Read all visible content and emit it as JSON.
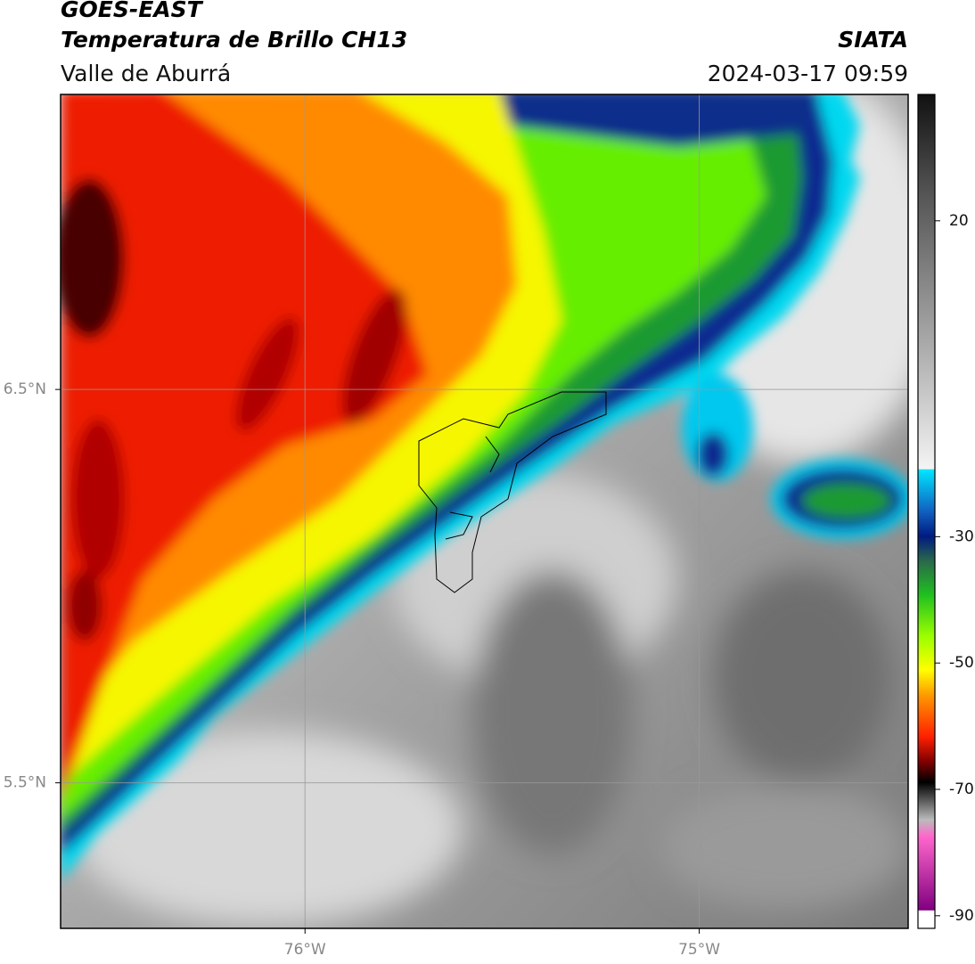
{
  "header": {
    "satellite": "GOES-EAST",
    "product": "Temperatura de Brillo CH13",
    "region": "Valle de Aburrá",
    "source": "SIATA",
    "datetime": "2024-03-17 09:59"
  },
  "map": {
    "xlim": [
      -76.62,
      -74.47
    ],
    "ylim": [
      5.13,
      7.25
    ],
    "xticks": [
      {
        "value": -76,
        "label": "76°W"
      },
      {
        "value": -75,
        "label": "75°W"
      }
    ],
    "yticks": [
      {
        "value": 6.5,
        "label": "6.5°N"
      },
      {
        "value": 5.5,
        "label": "5.5°N"
      }
    ],
    "grid": true
  },
  "colorbar": {
    "lim": [
      -92,
      40
    ],
    "ticks": [
      20,
      -30,
      -50,
      -70,
      -90
    ]
  }
}
